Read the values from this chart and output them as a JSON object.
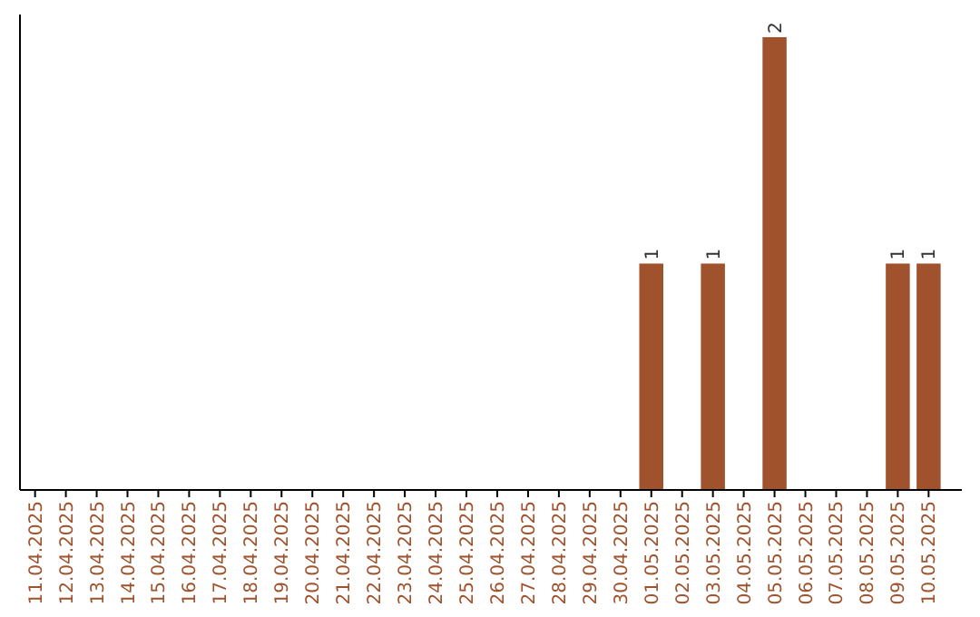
{
  "chart_data": {
    "type": "bar",
    "categories": [
      "11.04.2025",
      "12.04.2025",
      "13.04.2025",
      "14.04.2025",
      "15.04.2025",
      "16.04.2025",
      "17.04.2025",
      "18.04.2025",
      "19.04.2025",
      "20.04.2025",
      "21.04.2025",
      "22.04.2025",
      "23.04.2025",
      "24.04.2025",
      "25.04.2025",
      "26.04.2025",
      "27.04.2025",
      "28.04.2025",
      "29.04.2025",
      "30.04.2025",
      "01.05.2025",
      "02.05.2025",
      "03.05.2025",
      "04.05.2025",
      "05.05.2025",
      "06.05.2025",
      "07.05.2025",
      "08.05.2025",
      "09.05.2025",
      "10.05.2025"
    ],
    "values": [
      null,
      null,
      null,
      null,
      null,
      null,
      null,
      null,
      null,
      null,
      null,
      null,
      null,
      null,
      null,
      null,
      null,
      null,
      null,
      null,
      1,
      null,
      1,
      null,
      2,
      null,
      null,
      null,
      1,
      1
    ],
    "data_labels": true,
    "color": "#a0522d"
  }
}
